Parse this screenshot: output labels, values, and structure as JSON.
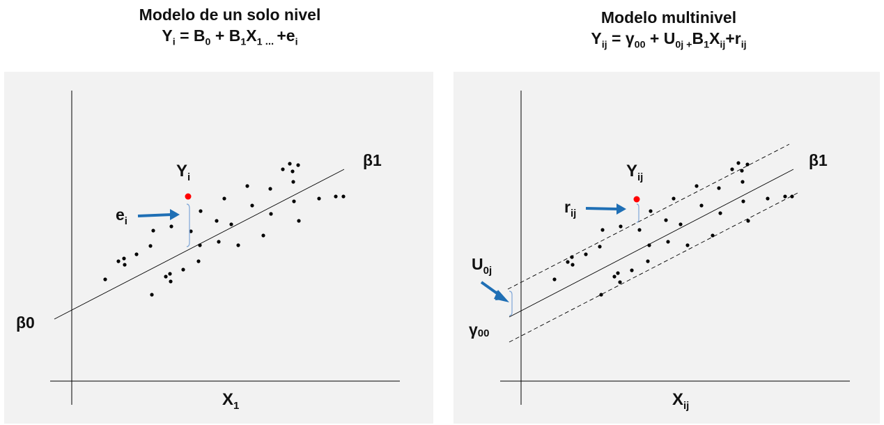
{
  "left": {
    "title": "Modelo de un solo nivel",
    "formula": {
      "y": "Y",
      "y_sub": "i",
      "eq": " = B",
      "b0_sub": "0",
      "plus1": " + B",
      "b1_sub": "1",
      "x": "X",
      "x_sub": "1",
      "dots": " ... ",
      "tail": "+e",
      "tail_sub": "i"
    },
    "labels": {
      "yi": "Y",
      "yi_sub": "i",
      "ei": "e",
      "ei_sub": "i",
      "b1": "β1",
      "b0": "β0",
      "x1": "X",
      "x1_sub": "1"
    }
  },
  "right": {
    "title": "Modelo multinivel",
    "formula": {
      "y": "Y",
      "y_sub": "ij",
      "eq": " = γ",
      "g_sub": "00",
      "plus1": " + U",
      "u_sub": "0j",
      "plus2": " +",
      "b": "B",
      "b_sub": "1",
      "x": "X",
      "x_sub": "ij",
      "tail": "+r",
      "tail_sub": "ij"
    },
    "labels": {
      "yij": "Y",
      "yij_sub": "ij",
      "rij": "r",
      "rij_sub": "ij",
      "b1": "β1",
      "u0j": "U",
      "u0j_sub": "0j",
      "g00": "γ",
      "g00_sub": "00",
      "xij": "X",
      "xij_sub": "ij"
    }
  },
  "colors": {
    "panel": "#f2f2f2",
    "point": "#000000",
    "highlight": "#ff0000",
    "arrow": "#1f6fb5",
    "bracket": "#7ea6d8"
  }
}
